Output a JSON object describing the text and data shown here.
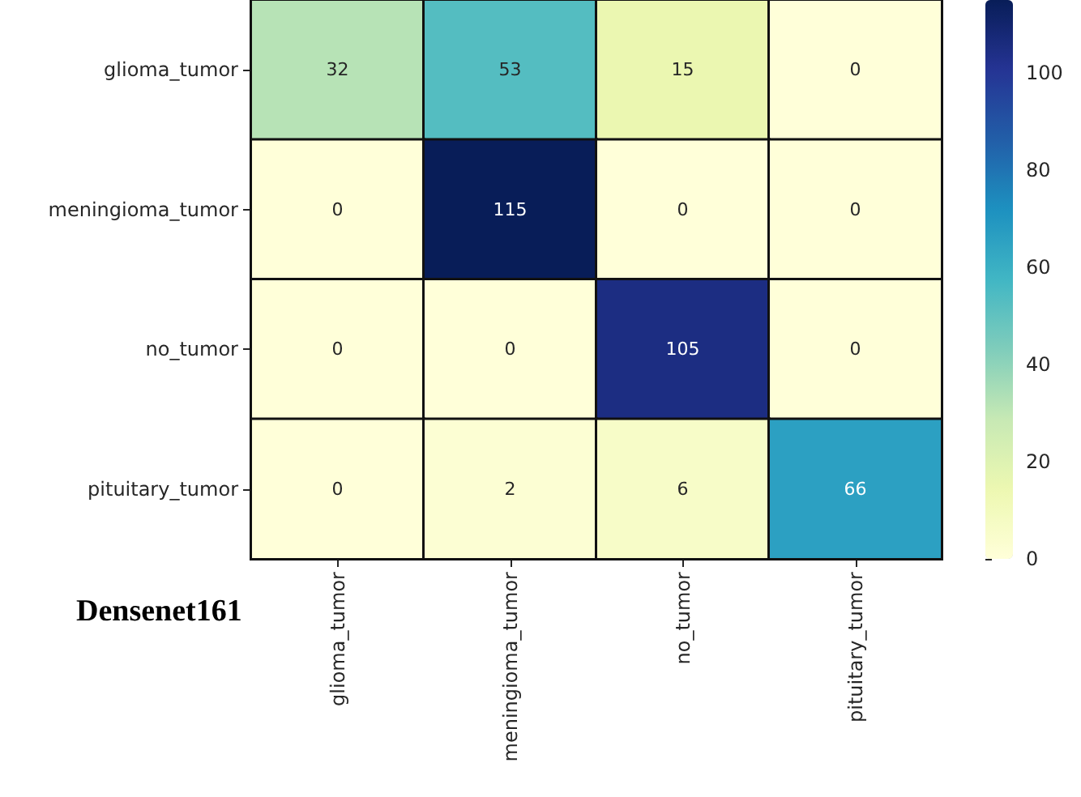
{
  "chart_data": {
    "type": "heatmap",
    "categories": [
      "glioma_tumor",
      "meningioma_tumor",
      "no_tumor",
      "pituitary_tumor"
    ],
    "y_categories": [
      "glioma_tumor",
      "meningioma_tumor",
      "no_tumor",
      "pituitary_tumor"
    ],
    "cells": [
      [
        32,
        53,
        15,
        0
      ],
      [
        0,
        115,
        0,
        0
      ],
      [
        0,
        0,
        105,
        0
      ],
      [
        0,
        2,
        6,
        66
      ]
    ],
    "data_labels": true,
    "clim": [
      0,
      115
    ],
    "cticks": [
      0,
      20,
      40,
      60,
      80,
      100
    ],
    "annotations": [
      "Densenet161"
    ]
  }
}
